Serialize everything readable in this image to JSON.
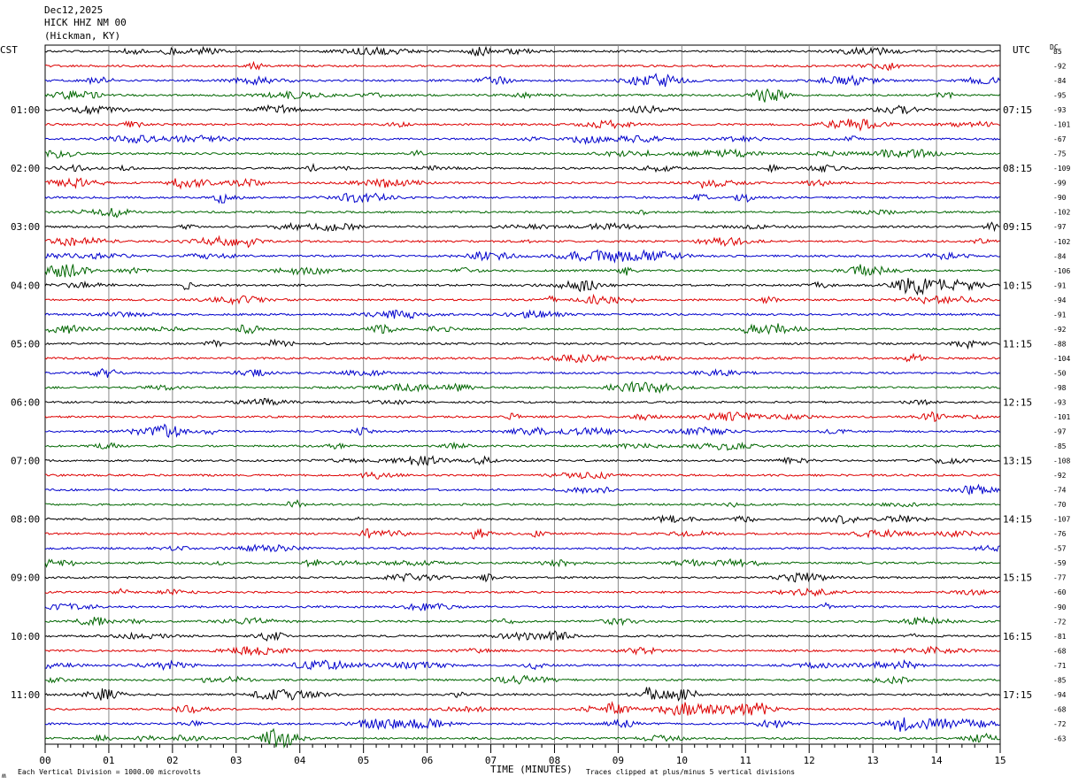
{
  "header": {
    "date": "Dec12,2025",
    "station": "HICK HHZ NM 00",
    "location": "(Hickman, KY)"
  },
  "labels": {
    "left_tz": "CST",
    "right_tz": "UTC",
    "dc": "DC",
    "xlabel": "TIME (MINUTES)",
    "scale_note": "Each Vertical Division = 1000.00 microvolts",
    "clip_note": "Traces clipped at plus/minus 5 vertical divisions",
    "corner_mark": "ʍ"
  },
  "chart_data": {
    "type": "line",
    "title": "HICK HHZ NM 00",
    "xlabel": "TIME (MINUTES)",
    "xlim": [
      0,
      15
    ],
    "x_ticks": [
      "00",
      "01",
      "02",
      "03",
      "04",
      "05",
      "06",
      "07",
      "08",
      "09",
      "10",
      "11",
      "12",
      "13",
      "14",
      "15"
    ],
    "trace_count": 48,
    "trace_colors": [
      "#000000",
      "#dd0000",
      "#0000cc",
      "#006600"
    ],
    "left_hour_labels": [
      "01:00",
      "02:00",
      "03:00",
      "04:00",
      "05:00",
      "06:00",
      "07:00",
      "08:00",
      "09:00",
      "10:00",
      "11:00"
    ],
    "right_hour_labels": [
      "07:15",
      "08:15",
      "09:15",
      "10:15",
      "11:15",
      "12:15",
      "13:15",
      "14:15",
      "15:15",
      "16:15",
      "17:15"
    ],
    "dc_offsets": [
      "85",
      "-92",
      "-84",
      "-95",
      "-93",
      "-101",
      "-67",
      "-75",
      "-109",
      "-99",
      "-90",
      "-102",
      "-97",
      "-102",
      "-84",
      "-106",
      "-91",
      "-94",
      "-91",
      "-92",
      "-88",
      "-104",
      "-50",
      "-98",
      "-93",
      "-101",
      "-97",
      "-85",
      "-108",
      "-92",
      "-74",
      "-70",
      "-107",
      "-76",
      "-57",
      "-59",
      "-77",
      "-60",
      "-90",
      "-72",
      "-81",
      "-68",
      "-71",
      "-85",
      "-94",
      "-68",
      "-72",
      "-63"
    ],
    "grid": true
  }
}
